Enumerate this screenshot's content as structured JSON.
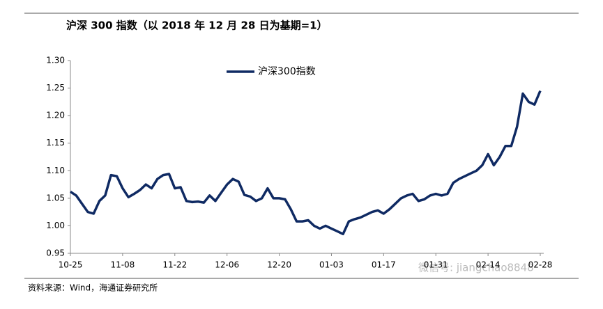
{
  "chart_data": {
    "type": "line",
    "title": "沪深 300 指数（以 2018 年 12 月 28 日为基期=1）",
    "source": "资料来源：Wind，海通证券研究所",
    "watermark": "微信号: jiangchao8848",
    "categories": [
      "10-25",
      null,
      null,
      null,
      null,
      null,
      null,
      null,
      null,
      "11-08",
      null,
      null,
      null,
      null,
      null,
      null,
      null,
      null,
      "11-22",
      null,
      null,
      null,
      null,
      null,
      null,
      null,
      null,
      "12-06",
      null,
      null,
      null,
      null,
      null,
      null,
      null,
      null,
      "12-20",
      null,
      null,
      null,
      null,
      null,
      null,
      null,
      null,
      "01-03",
      null,
      null,
      null,
      null,
      null,
      null,
      null,
      null,
      "01-17",
      null,
      null,
      null,
      null,
      null,
      null,
      null,
      null,
      "01-31",
      null,
      null,
      null,
      null,
      null,
      null,
      null,
      null,
      "02-14",
      null,
      null,
      null,
      null,
      null,
      null,
      null,
      null,
      "02-28"
    ],
    "series": [
      {
        "name": "沪深300指数",
        "color": "#0f2a63",
        "values": [
          1.062,
          1.055,
          1.04,
          1.025,
          1.022,
          1.045,
          1.055,
          1.092,
          1.09,
          1.068,
          1.052,
          1.058,
          1.065,
          1.075,
          1.068,
          1.085,
          1.092,
          1.094,
          1.068,
          1.07,
          1.045,
          1.043,
          1.044,
          1.042,
          1.055,
          1.045,
          1.06,
          1.075,
          1.085,
          1.08,
          1.056,
          1.053,
          1.045,
          1.05,
          1.068,
          1.05,
          1.05,
          1.048,
          1.03,
          1.008,
          1.008,
          1.01,
          1.0,
          0.995,
          1.0,
          0.995,
          0.99,
          0.985,
          1.008,
          1.012,
          1.015,
          1.02,
          1.025,
          1.028,
          1.022,
          1.03,
          1.04,
          1.05,
          1.055,
          1.058,
          1.045,
          1.048,
          1.055,
          1.058,
          1.055,
          1.058,
          1.078,
          1.085,
          1.09,
          1.095,
          1.1,
          1.11,
          1.13,
          1.11,
          1.125,
          1.145,
          1.145,
          1.18,
          1.24,
          1.225,
          1.22,
          1.245
        ]
      }
    ],
    "ylim": [
      0.95,
      1.3
    ],
    "yticks": [
      0.95,
      {
        "value": 1.0,
        "label": "1.00"
      },
      1.05,
      {
        "value": 1.1,
        "label": "1.10"
      },
      1.15,
      {
        "value": 1.2,
        "label": "1.20"
      },
      1.25,
      {
        "value": 1.3,
        "label": "1.30"
      }
    ],
    "legend": "top"
  }
}
